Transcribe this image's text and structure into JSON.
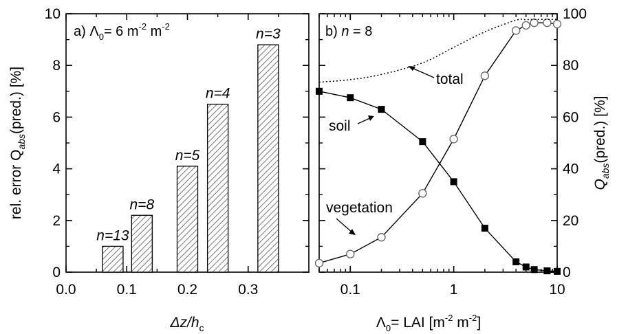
{
  "chart_data": [
    {
      "type": "bar",
      "panel_label": "a) Λ",
      "panel_label_sub": "0",
      "panel_label_rest": "= 6 m",
      "panel_label_exp1": "-2",
      "panel_label_unit2": " m",
      "panel_label_exp2": "-2",
      "xlabel_delta": "Δz/h",
      "xlabel_sub": "c",
      "ylabel_main": "rel. error Q",
      "ylabel_sub": "abs",
      "ylabel_rest": "(pred.) [%]",
      "xlim": [
        0.0,
        0.4
      ],
      "ylim": [
        0,
        10
      ],
      "xticks": [
        "0.0",
        "0.1",
        "0.2",
        "0.3"
      ],
      "yticks": [
        "0",
        "2",
        "4",
        "6",
        "8",
        "10"
      ],
      "bars": [
        {
          "x": 0.077,
          "value": 1.0,
          "label": "n=13"
        },
        {
          "x": 0.125,
          "value": 2.2,
          "label": "n=8"
        },
        {
          "x": 0.2,
          "value": 4.1,
          "label": "n=5"
        },
        {
          "x": 0.25,
          "value": 6.5,
          "label": "n=4"
        },
        {
          "x": 0.333,
          "value": 8.8,
          "label": "n=3"
        }
      ],
      "bar_width": 0.034,
      "grid": false
    },
    {
      "type": "line",
      "panel_label": "b) ",
      "panel_label_n": "n",
      "panel_label_rest": " = 8",
      "xlabel_main": "Λ",
      "xlabel_sub": "0",
      "xlabel_rest": "= LAI  [m",
      "xlabel_exp1": "-2",
      "xlabel_mid": " m",
      "xlabel_exp2": "-2",
      "xlabel_end": "]",
      "ylabel_main": "Q",
      "ylabel_sub": "abs",
      "ylabel_rest": "(pred.) [%]",
      "xscale": "log",
      "xlim": [
        0.05,
        10
      ],
      "ylim": [
        0,
        100
      ],
      "xticks": [
        {
          "v": 0.1,
          "label": "0.1"
        },
        {
          "v": 1,
          "label": "1"
        },
        {
          "v": 10,
          "label": "10"
        }
      ],
      "yticks": [
        "0",
        "20",
        "40",
        "60",
        "80",
        "100"
      ],
      "series": [
        {
          "name": "soil",
          "marker": "filled-square",
          "x": [
            0.05,
            0.1,
            0.2,
            0.5,
            1,
            2,
            4,
            5,
            6,
            8,
            10
          ],
          "y": [
            70,
            67.5,
            63,
            50.5,
            35,
            17,
            4,
            2,
            1,
            0.5,
            0.3
          ]
        },
        {
          "name": "vegetation",
          "marker": "open-circle",
          "x": [
            0.05,
            0.1,
            0.2,
            0.5,
            1,
            2,
            4,
            5,
            6,
            8,
            10
          ],
          "y": [
            3.5,
            7,
            13.5,
            30.5,
            51.5,
            76,
            93.5,
            95.5,
            96.5,
            96.5,
            96
          ]
        },
        {
          "name": "total",
          "marker": "none",
          "linestyle": "dotted",
          "x": [
            0.05,
            0.1,
            0.2,
            0.5,
            1,
            2,
            4,
            5,
            6,
            8,
            10
          ],
          "y": [
            73.5,
            74.5,
            76.5,
            81,
            87,
            93,
            97.5,
            97.7,
            97.8,
            97.8,
            97.8
          ]
        }
      ],
      "grid": false
    }
  ]
}
